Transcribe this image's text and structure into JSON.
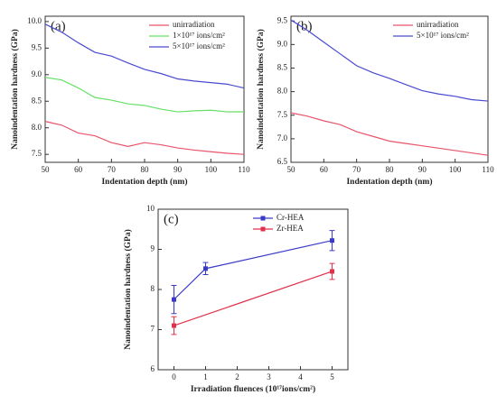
{
  "chart_data": [
    {
      "type": "line",
      "label": "(a)",
      "xlabel": "Indentation depth (nm)",
      "ylabel": "Nanoindentation hardness (GPa)",
      "x": [
        50,
        55,
        60,
        65,
        70,
        75,
        80,
        85,
        90,
        95,
        100,
        105,
        110
      ],
      "series": [
        {
          "name": "unirradiation",
          "color": "#e8556b",
          "values": [
            8.12,
            8.05,
            7.9,
            7.85,
            7.72,
            7.65,
            7.72,
            7.68,
            7.62,
            7.58,
            7.55,
            7.52,
            7.5
          ]
        },
        {
          "name": "1×10¹⁷ ions/cm²",
          "color": "#66e066",
          "values": [
            8.95,
            8.9,
            8.75,
            8.57,
            8.52,
            8.45,
            8.42,
            8.35,
            8.3,
            8.32,
            8.33,
            8.3,
            8.3
          ]
        },
        {
          "name": "5×10¹⁷ ions/cm²",
          "color": "#4a4ad0",
          "values": [
            9.95,
            9.8,
            9.6,
            9.42,
            9.35,
            9.22,
            9.1,
            9.02,
            8.92,
            8.88,
            8.85,
            8.82,
            8.75
          ]
        }
      ],
      "xlim": [
        50,
        110
      ],
      "xticks": [
        50,
        60,
        70,
        80,
        90,
        100,
        110
      ],
      "ylim": [
        7.35,
        10.1
      ],
      "yticks": [
        7.5,
        {
          "value": 8,
          "label": "8.0"
        },
        8.5,
        {
          "value": 9,
          "label": "9.0"
        },
        9.5,
        {
          "value": 10,
          "label": "10.0"
        }
      ]
    },
    {
      "type": "line",
      "label": "(b)",
      "xlabel": "Indentation depth (nm)",
      "ylabel": "Nanoindentation hardness (GPa)",
      "x": [
        50,
        55,
        60,
        65,
        70,
        75,
        80,
        85,
        90,
        95,
        100,
        105,
        110
      ],
      "series": [
        {
          "name": "unirradiation",
          "color": "#e8556b",
          "values": [
            7.55,
            7.48,
            7.38,
            7.3,
            7.15,
            7.05,
            6.95,
            6.9,
            6.85,
            6.8,
            6.75,
            6.7,
            6.65
          ]
        },
        {
          "name": "5×10¹⁷ ions/cm²",
          "color": "#4a4ad0",
          "values": [
            9.52,
            9.3,
            9.05,
            8.8,
            8.55,
            8.4,
            8.28,
            8.15,
            8.02,
            7.95,
            7.9,
            7.83,
            7.8
          ]
        }
      ],
      "xlim": [
        50,
        110
      ],
      "xticks": [
        50,
        60,
        70,
        80,
        90,
        100,
        110
      ],
      "ylim": [
        6.5,
        9.6
      ],
      "yticks": [
        6.5,
        {
          "value": 7,
          "label": "7.0"
        },
        7.5,
        {
          "value": 8,
          "label": "8.0"
        },
        8.5,
        {
          "value": 9,
          "label": "9.0"
        },
        9.5
      ]
    },
    {
      "type": "line",
      "markers": true,
      "label": "(c)",
      "xlabel": "Irradiation fluences (10¹⁷ions/cm²)",
      "ylabel": "Nanoindentation hardness (GPa)",
      "series": [
        {
          "name": "Cr-HEA",
          "color": "#3a3ac8",
          "x": [
            0,
            1,
            5
          ],
          "values": [
            7.75,
            8.52,
            9.22
          ],
          "errors": [
            0.35,
            0.15,
            0.25
          ]
        },
        {
          "name": "Zr-HEA",
          "color": "#e0304a",
          "x": [
            0,
            5
          ],
          "values": [
            7.1,
            8.45
          ],
          "errors": [
            0.22,
            0.2
          ]
        }
      ],
      "xlim": [
        -0.5,
        5.5
      ],
      "xticks": [
        0,
        1,
        2,
        3,
        4,
        5
      ],
      "ylim": [
        6,
        10
      ],
      "yticks": [
        6,
        7,
        8,
        9,
        10
      ]
    }
  ]
}
